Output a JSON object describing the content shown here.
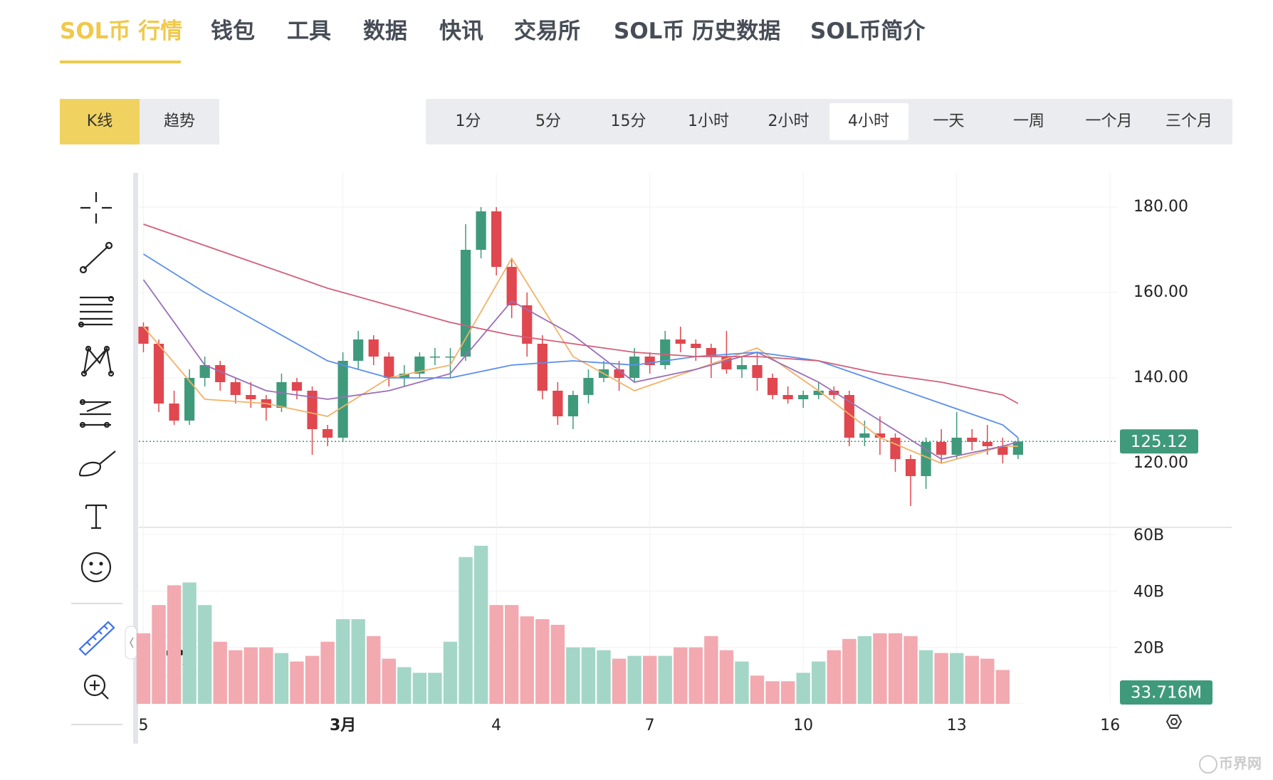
{
  "nav": {
    "tabs": [
      "SOL币 行情",
      "钱包",
      "工具",
      "数据",
      "快讯",
      "交易所",
      "SOL币 历史数据",
      "SOL币简介"
    ],
    "active": 0
  },
  "chart_mode": {
    "buttons": [
      "K线",
      "趋势"
    ],
    "active": 0
  },
  "intervals": {
    "buttons": [
      "1分",
      "5分",
      "15分",
      "1小时",
      "2小时",
      "4小时",
      "一天",
      "一周",
      "一个月",
      "三个月"
    ],
    "active": 5
  },
  "chart_data": {
    "type": "candlestick",
    "candles": [
      [
        152,
        153,
        146,
        148
      ],
      [
        148,
        149,
        132,
        134
      ],
      [
        134,
        137,
        129,
        130
      ],
      [
        130,
        142,
        129,
        140
      ],
      [
        140,
        145,
        138,
        143
      ],
      [
        143,
        144,
        137,
        139
      ],
      [
        139,
        140,
        134,
        136
      ],
      [
        136,
        139,
        133,
        135
      ],
      [
        135,
        136,
        130,
        133
      ],
      [
        133,
        141,
        132,
        139
      ],
      [
        139,
        140,
        135,
        137
      ],
      [
        137,
        138,
        122,
        128
      ],
      [
        128,
        129,
        124,
        126
      ],
      [
        126,
        146,
        125,
        144
      ],
      [
        144,
        151,
        142,
        149
      ],
      [
        149,
        150,
        143,
        145
      ],
      [
        145,
        146,
        138,
        140
      ],
      [
        140,
        143,
        138,
        141
      ],
      [
        141,
        146,
        140,
        145
      ],
      [
        145,
        147,
        143,
        145
      ],
      [
        145,
        147,
        140,
        145
      ],
      [
        145,
        176,
        144,
        170
      ],
      [
        170,
        180,
        168,
        179
      ],
      [
        179,
        180,
        164,
        166
      ],
      [
        166,
        168,
        154,
        157
      ],
      [
        157,
        160,
        145,
        148
      ],
      [
        148,
        150,
        135,
        137
      ],
      [
        137,
        139,
        129,
        131
      ],
      [
        131,
        137,
        128,
        136
      ],
      [
        136,
        142,
        134,
        140
      ],
      [
        140,
        144,
        139,
        142
      ],
      [
        142,
        144,
        137,
        140
      ],
      [
        140,
        147,
        139,
        145
      ],
      [
        145,
        146,
        141,
        143
      ],
      [
        143,
        151,
        142,
        149
      ],
      [
        149,
        152,
        146,
        148
      ],
      [
        148,
        149,
        144,
        147
      ],
      [
        147,
        148,
        140,
        145
      ],
      [
        145,
        151,
        141,
        142
      ],
      [
        142,
        145,
        140,
        143
      ],
      [
        143,
        146,
        137,
        140
      ],
      [
        140,
        141,
        135,
        136
      ],
      [
        136,
        138,
        134,
        135
      ],
      [
        135,
        137,
        133,
        136
      ],
      [
        136,
        139,
        135,
        137
      ],
      [
        137,
        138,
        135,
        136
      ],
      [
        136,
        137,
        124,
        126
      ],
      [
        126,
        130,
        124,
        127
      ],
      [
        127,
        131,
        122,
        126
      ],
      [
        126,
        127,
        118,
        121
      ],
      [
        121,
        122,
        110,
        117
      ],
      [
        117,
        126,
        114,
        125
      ],
      [
        125,
        128,
        120,
        122
      ],
      [
        122,
        132,
        121,
        126
      ],
      [
        126,
        128,
        123,
        125
      ],
      [
        125,
        129,
        122,
        124
      ],
      [
        124,
        126,
        120,
        122
      ],
      [
        122,
        126,
        121,
        125.12
      ]
    ],
    "up_color": "#3f9a7c",
    "down_color": "#e0474f",
    "xlim": [
      -0.3,
      63.5
    ],
    "xticks": [
      {
        "value": 0,
        "label": "5"
      },
      {
        "value": 13,
        "label": "3月"
      },
      {
        "value": 23,
        "label": "4"
      },
      {
        "value": 33,
        "label": "7"
      },
      {
        "value": 43,
        "label": "10"
      },
      {
        "value": 53,
        "label": "13"
      },
      {
        "value": 63,
        "label": "16"
      }
    ],
    "ylim": [
      105,
      188
    ],
    "yticks": [
      {
        "value": 120,
        "label": "120.00"
      },
      {
        "value": 140,
        "label": "140.00"
      },
      {
        "value": 160,
        "label": "160.00"
      },
      {
        "value": 180,
        "label": "180.00"
      }
    ],
    "grid": true,
    "moving_averages": {
      "x": [
        0,
        4,
        8,
        12,
        16,
        20,
        24,
        28,
        32,
        36,
        40,
        44,
        48,
        52,
        56,
        57
      ],
      "series": [
        {
          "color": "#f2b266",
          "values": [
            152,
            135,
            134,
            131,
            140,
            143,
            168,
            145,
            137,
            142,
            147,
            137,
            126,
            120,
            124,
            124
          ]
        },
        {
          "color": "#9a6fb8",
          "values": [
            163,
            143,
            137,
            135,
            137,
            141,
            158,
            150,
            139,
            142,
            146,
            139,
            130,
            121,
            124,
            125
          ]
        },
        {
          "color": "#5b8ff0",
          "values": [
            169,
            160,
            152,
            144,
            140,
            140,
            143,
            144,
            143,
            145,
            146,
            144,
            139,
            134,
            129,
            126
          ]
        },
        {
          "color": "#d2607a",
          "values": [
            176,
            171,
            166,
            161,
            157,
            153,
            150,
            148,
            146,
            145,
            145,
            144,
            141,
            139,
            136,
            134
          ]
        }
      ]
    },
    "volume": {
      "values": [
        25,
        35,
        42,
        43,
        35,
        22,
        19,
        20,
        20,
        18,
        15,
        17,
        22,
        30,
        30,
        24,
        16,
        13,
        11,
        11,
        22,
        52,
        56,
        35,
        35,
        31,
        30,
        28,
        20,
        20,
        19,
        16,
        17,
        17,
        17,
        20,
        20,
        24,
        19,
        15,
        10,
        8,
        8,
        11,
        15,
        19,
        23,
        24,
        25,
        25,
        24,
        19,
        18,
        18,
        17,
        16,
        12,
        0.033716
      ],
      "value_labels": [
        null,
        null,
        null,
        null,
        null,
        null,
        null,
        null,
        null,
        null,
        null,
        null,
        null,
        null,
        null,
        null,
        null,
        null,
        null,
        null,
        null,
        null,
        null,
        null,
        null,
        null,
        null,
        null,
        null,
        null,
        null,
        null,
        null,
        null,
        null,
        null,
        null,
        null,
        null,
        null,
        null,
        null,
        null,
        null,
        null,
        null,
        null,
        null,
        null,
        null,
        null,
        null,
        null,
        null,
        null,
        null,
        null,
        "33.716M"
      ],
      "ylim": [
        0,
        60
      ],
      "yticks": [
        {
          "value": 20,
          "label": "20B"
        },
        {
          "value": 40,
          "label": "40B"
        },
        {
          "value": 60,
          "label": "60B"
        }
      ],
      "up_color": "#a3d6c6",
      "down_color": "#f2a9b0"
    }
  },
  "watermark": "币界网"
}
